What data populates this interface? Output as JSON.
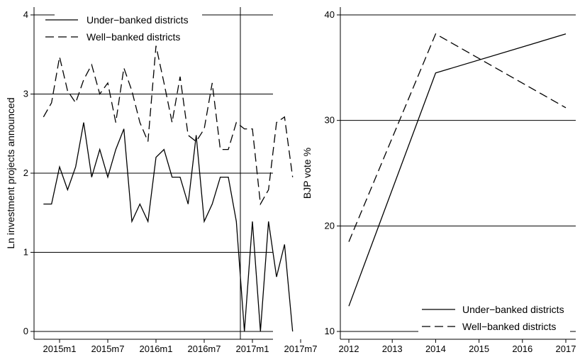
{
  "chart_data": [
    {
      "type": "line",
      "title": "",
      "xlabel": "",
      "ylabel": "Ln investment projects announced",
      "ylim": [
        0,
        4
      ],
      "y_ticks": [
        0,
        1,
        2,
        3,
        4
      ],
      "x_tick_labels": [
        "2015m1",
        "2015m7",
        "2016m1",
        "2016m7",
        "2017m1",
        "2017m7"
      ],
      "x_tick_months": [
        0,
        6,
        12,
        18,
        24,
        30
      ],
      "x_months": [
        -2,
        -1,
        0,
        1,
        2,
        3,
        4,
        5,
        6,
        7,
        8,
        9,
        10,
        11,
        12,
        13,
        14,
        15,
        16,
        17,
        18,
        19,
        20,
        21,
        22,
        23,
        24,
        25,
        26,
        27,
        28,
        29,
        30
      ],
      "vertical_reference": "2016m11",
      "grid": "horizontal",
      "legend_position": "top-left",
      "series": [
        {
          "name": "Under−banked districts",
          "dash": "solid",
          "values": [
            1.61,
            1.61,
            2.08,
            1.79,
            2.08,
            2.64,
            1.95,
            2.3,
            1.95,
            2.3,
            2.56,
            1.39,
            1.61,
            1.39,
            2.2,
            2.3,
            1.95,
            1.95,
            1.61,
            2.48,
            1.39,
            1.61,
            1.95,
            1.95,
            1.39,
            0.0,
            1.39,
            0.0,
            1.39,
            0.69,
            1.1,
            0.0,
            null
          ]
        },
        {
          "name": "Well−banked districts",
          "dash": "dashed",
          "values": [
            2.71,
            2.89,
            3.47,
            3.04,
            2.89,
            3.18,
            3.37,
            3.0,
            3.14,
            2.64,
            3.33,
            3.04,
            2.64,
            2.4,
            3.61,
            3.14,
            2.64,
            3.22,
            2.48,
            2.4,
            2.56,
            3.14,
            2.3,
            2.3,
            2.64,
            2.56,
            2.56,
            1.61,
            1.79,
            2.64,
            2.71,
            1.95,
            null
          ]
        }
      ]
    },
    {
      "type": "line",
      "title": "",
      "xlabel": "",
      "ylabel": "BJP vote %",
      "ylim": [
        10,
        40
      ],
      "y_ticks": [
        10,
        20,
        30,
        40
      ],
      "x_ticks": [
        2012,
        2013,
        2014,
        2015,
        2016,
        2017
      ],
      "grid": "horizontal",
      "legend_position": "bottom-right",
      "series": [
        {
          "name": "Under−banked districts",
          "dash": "solid",
          "x": [
            2012,
            2014,
            2017
          ],
          "values": [
            12.4,
            34.5,
            38.2
          ]
        },
        {
          "name": "Well−banked districts",
          "dash": "dashed",
          "x": [
            2012,
            2014,
            2017
          ],
          "values": [
            18.5,
            38.2,
            31.2
          ]
        }
      ]
    }
  ]
}
